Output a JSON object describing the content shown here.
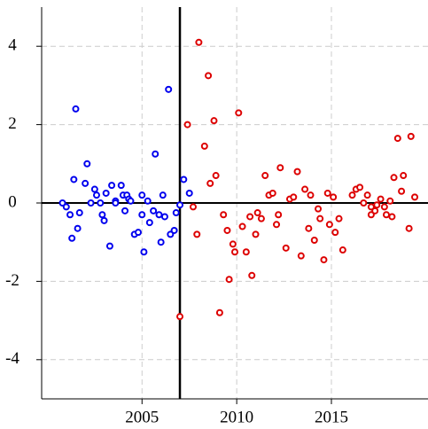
{
  "chart_data": {
    "type": "scatter",
    "xlim": [
      1999.7,
      2020.1
    ],
    "ylim": [
      -5,
      5
    ],
    "xticks": [
      2005,
      2010,
      2015
    ],
    "yticks": [
      -4,
      -2,
      0,
      2,
      4
    ],
    "grid": true,
    "vline": 2007,
    "hline": 0,
    "series": [
      {
        "color": "#0000ee",
        "x": [
          2000.8,
          2001.0,
          2001.2,
          2001.3,
          2001.4,
          2001.5,
          2001.6,
          2001.7,
          2002.0,
          2002.1,
          2002.3,
          2002.5,
          2002.6,
          2002.8,
          2002.9,
          2003.0,
          2003.1,
          2003.3,
          2003.4,
          2003.6,
          2003.6,
          2003.9,
          2004.0,
          2004.1,
          2004.2,
          2004.3,
          2004.4,
          2004.6,
          2004.8,
          2005.0,
          2005.0,
          2005.1,
          2005.3,
          2005.4,
          2005.6,
          2005.7,
          2005.9,
          2006.0,
          2006.1,
          2006.2,
          2006.4,
          2006.5,
          2006.7,
          2006.8,
          2007.0,
          2007.2,
          2007.5
        ],
        "values": [
          0,
          -0.1,
          -0.3,
          -0.9,
          0.6,
          2.4,
          -0.65,
          -0.25,
          0.5,
          1.0,
          0,
          0.35,
          0.2,
          0,
          -0.3,
          -0.45,
          0.25,
          -1.1,
          0.45,
          0.05,
          0,
          0.45,
          0.2,
          -0.2,
          0.2,
          0.1,
          0.05,
          -0.8,
          -0.75,
          -0.3,
          0.2,
          -1.25,
          0.05,
          -0.5,
          -0.2,
          1.25,
          -0.3,
          -1.0,
          0.2,
          -0.35,
          2.9,
          -0.8,
          -0.7,
          -0.25,
          -0.05,
          0.6,
          0.25
        ]
      },
      {
        "color": "#dd0000",
        "x": [
          2007.0,
          2007.4,
          2007.7,
          2007.9,
          2008.0,
          2008.3,
          2008.5,
          2008.6,
          2008.8,
          2008.9,
          2009.1,
          2009.3,
          2009.5,
          2009.6,
          2009.8,
          2009.9,
          2010.1,
          2010.3,
          2010.5,
          2010.7,
          2010.8,
          2011.0,
          2011.1,
          2011.3,
          2011.5,
          2011.7,
          2011.9,
          2012.1,
          2012.2,
          2012.3,
          2012.6,
          2012.8,
          2013.0,
          2013.2,
          2013.4,
          2013.6,
          2013.8,
          2013.9,
          2014.1,
          2014.3,
          2014.4,
          2014.6,
          2014.8,
          2014.9,
          2015.1,
          2015.2,
          2015.4,
          2015.6,
          2016.1,
          2016.3,
          2016.5,
          2016.7,
          2016.9,
          2017.1,
          2017.1,
          2017.3,
          2017.4,
          2017.6,
          2017.8,
          2017.9,
          2018.1,
          2018.2,
          2018.3,
          2018.5,
          2018.7,
          2018.8,
          2019.1,
          2019.2,
          2019.4
        ],
        "values": [
          -2.9,
          2.0,
          -0.1,
          -0.8,
          4.1,
          1.45,
          3.25,
          0.5,
          2.1,
          0.7,
          -2.8,
          -0.3,
          -0.7,
          -1.95,
          -1.05,
          -1.25,
          2.3,
          -0.6,
          -1.25,
          -0.35,
          -1.85,
          -0.8,
          -0.25,
          -0.4,
          0.7,
          0.2,
          0.25,
          -0.55,
          -0.3,
          0.9,
          -1.15,
          0.1,
          0.15,
          0.8,
          -1.35,
          0.35,
          -0.65,
          0.2,
          -0.95,
          -0.15,
          -0.4,
          -1.45,
          0.25,
          -0.55,
          0.15,
          -0.75,
          -0.4,
          -1.2,
          0.2,
          0.35,
          0.4,
          0,
          0.2,
          -0.3,
          -0.1,
          -0.2,
          -0.05,
          0.1,
          -0.1,
          -0.3,
          0.05,
          -0.35,
          0.65,
          1.65,
          0.3,
          0.7,
          -0.65,
          1.7,
          0.15
        ]
      }
    ]
  }
}
